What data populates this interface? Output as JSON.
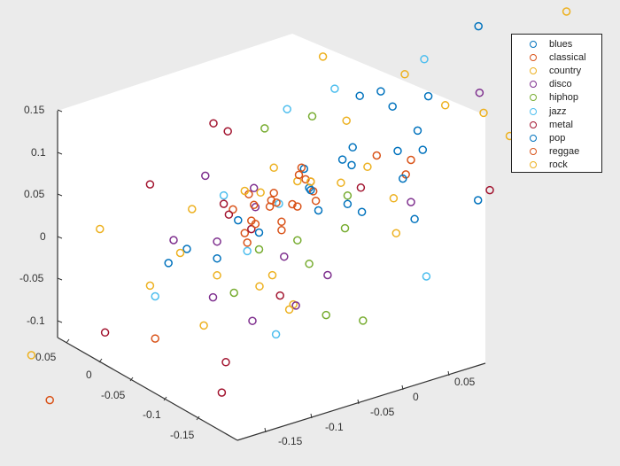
{
  "chart_data": {
    "type": "scatter3d",
    "title": "",
    "xlabel": "",
    "ylabel": "",
    "zlabel": "",
    "legend_position": "top-right outside",
    "grid": false,
    "x_ticks": [
      "-0.15",
      "-0.1",
      "-0.05",
      "0",
      "0.05"
    ],
    "y_ticks": [
      "0.05",
      "0",
      "-0.05",
      "-0.1",
      "-0.15"
    ],
    "z_ticks": [
      "0.15",
      "0.1",
      "0.05",
      "0",
      "-0.05",
      "-0.1"
    ],
    "series": [
      {
        "name": "blues",
        "color": "#0072BD",
        "points": [
          [
            0.02,
            0.01,
            0.05
          ],
          [
            0.05,
            -0.02,
            0.03
          ],
          [
            -0.03,
            0.04,
            0.02
          ],
          [
            0.08,
            0.02,
            0.06
          ],
          [
            0.1,
            -0.05,
            0.04
          ],
          [
            -0.06,
            0.03,
            -0.02
          ],
          [
            0.03,
            -0.06,
            0.1
          ],
          [
            0.12,
            -0.03,
            0.02
          ],
          [
            0.0,
            0.05,
            0.0
          ],
          [
            0.06,
            0.0,
            -0.01
          ],
          [
            -0.1,
            0.02,
            0.0
          ],
          [
            0.09,
            -0.08,
            0.07
          ],
          [
            0.14,
            0.01,
            -0.05
          ],
          [
            0.04,
            0.03,
            0.03
          ]
        ]
      },
      {
        "name": "classical",
        "color": "#D95319",
        "points": [
          [
            -0.02,
            0.0,
            0.03
          ],
          [
            -0.01,
            0.02,
            0.02
          ],
          [
            0.0,
            0.0,
            0.01
          ],
          [
            -0.04,
            0.01,
            0.04
          ],
          [
            0.01,
            0.03,
            0.0
          ],
          [
            -0.03,
            -0.01,
            0.02
          ],
          [
            0.02,
            0.02,
            0.01
          ],
          [
            -0.05,
            0.02,
            0.03
          ],
          [
            0.0,
            -0.02,
            0.03
          ],
          [
            -0.02,
            0.04,
            -0.01
          ],
          [
            0.01,
            0.0,
            0.05
          ],
          [
            -0.03,
            0.03,
            0.0
          ],
          [
            0.03,
            0.01,
            0.02
          ],
          [
            -0.12,
            0.04,
            -0.09
          ],
          [
            0.08,
            -0.06,
            -0.01
          ]
        ]
      },
      {
        "name": "country",
        "color": "#EDB120",
        "points": [
          [
            -0.08,
            0.04,
            0.05
          ],
          [
            0.05,
            -0.1,
            0.1
          ],
          [
            0.13,
            -0.05,
            0.06
          ],
          [
            -0.14,
            0.02,
            -0.03
          ],
          [
            0.02,
            0.02,
            0.04
          ],
          [
            0.0,
            0.03,
            -0.06
          ],
          [
            -0.05,
            -0.02,
            -0.08
          ],
          [
            0.11,
            0.0,
            -0.02
          ],
          [
            -0.1,
            0.03,
            0.0
          ],
          [
            0.06,
            -0.03,
            0.02
          ],
          [
            -0.02,
            0.0,
            0.06
          ],
          [
            0.15,
            -0.08,
            0.03
          ],
          [
            -0.06,
            0.05,
            -0.09
          ],
          [
            0.03,
            0.04,
            -0.1
          ]
        ]
      },
      {
        "name": "disco",
        "color": "#7E2F8E",
        "points": [
          [
            -0.08,
            0.02,
            0.08
          ],
          [
            -0.06,
            0.03,
            0.0
          ],
          [
            0.0,
            0.06,
            -0.1
          ],
          [
            -0.04,
            0.0,
            0.02
          ],
          [
            0.06,
            0.03,
            -0.08
          ],
          [
            0.1,
            -0.04,
            -0.04
          ],
          [
            -0.1,
            0.04,
            0.02
          ],
          [
            0.02,
            0.04,
            -0.04
          ],
          [
            -0.05,
            0.05,
            -0.06
          ],
          [
            0.16,
            -0.06,
            0.06
          ],
          [
            0.04,
            0.05,
            -0.1
          ],
          [
            -0.02,
            0.03,
            0.05
          ]
        ]
      },
      {
        "name": "hiphop",
        "color": "#77AC30",
        "points": [
          [
            0.0,
            -0.03,
            0.1
          ],
          [
            -0.03,
            0.0,
            0.11
          ],
          [
            0.02,
            0.02,
            -0.03
          ],
          [
            0.08,
            0.06,
            -0.12
          ],
          [
            0.12,
            0.06,
            -0.14
          ],
          [
            0.04,
            0.03,
            -0.06
          ],
          [
            -0.02,
            0.06,
            -0.06
          ],
          [
            0.06,
            0.0,
            0.0
          ],
          [
            0.0,
            0.05,
            -0.02
          ],
          [
            0.05,
            -0.01,
            -0.04
          ]
        ]
      },
      {
        "name": "jazz",
        "color": "#4DBEEE",
        "points": [
          [
            -0.02,
            -0.02,
            0.12
          ],
          [
            0.01,
            -0.05,
            0.12
          ],
          [
            -0.06,
            0.02,
            0.05
          ],
          [
            -0.12,
            0.04,
            -0.04
          ],
          [
            0.0,
            0.02,
            0.02
          ],
          [
            0.04,
            0.08,
            -0.12
          ],
          [
            0.16,
            0.02,
            -0.12
          ],
          [
            0.1,
            -0.06,
            0.12
          ],
          [
            -0.02,
            0.04,
            -0.02
          ]
        ]
      },
      {
        "name": "metal",
        "color": "#A2142F",
        "points": [
          [
            -0.1,
            -0.02,
            0.13
          ],
          [
            -0.14,
            0.02,
            0.09
          ],
          [
            -0.07,
            0.0,
            0.12
          ],
          [
            -0.06,
            0.02,
            0.04
          ],
          [
            -0.16,
            0.06,
            -0.06
          ],
          [
            0.01,
            0.12,
            -0.16
          ],
          [
            -0.04,
            0.04,
            0.03
          ],
          [
            0.2,
            -0.02,
            -0.05
          ],
          [
            0.03,
            0.06,
            -0.08
          ],
          [
            0.0,
            0.1,
            -0.13
          ],
          [
            -0.03,
            0.02,
            0.0
          ],
          [
            0.06,
            -0.02,
            0.0
          ]
        ]
      },
      {
        "name": "pop",
        "color": "#0072BD",
        "points": [
          [
            0.06,
            -0.05,
            0.1
          ],
          [
            0.08,
            -0.04,
            0.08
          ],
          [
            0.04,
            -0.02,
            0.04
          ],
          [
            0.1,
            -0.02,
            0.03
          ],
          [
            0.12,
            0.0,
            0.0
          ],
          [
            -0.12,
            0.02,
            -0.01
          ],
          [
            0.02,
            0.0,
            0.02
          ],
          [
            0.13,
            -0.1,
            0.13
          ],
          [
            0.09,
            0.02,
            -0.02
          ],
          [
            0.05,
            0.03,
            0.0
          ],
          [
            0.18,
            -0.03,
            -0.06
          ]
        ]
      },
      {
        "name": "reggae",
        "color": "#D95319",
        "points": [
          [
            -0.01,
            0.01,
            0.02
          ],
          [
            0.02,
            0.0,
            0.03
          ],
          [
            -0.03,
            0.02,
            0.01
          ],
          [
            0.0,
            -0.01,
            0.04
          ],
          [
            -0.02,
            0.03,
            0.03
          ],
          [
            0.04,
            0.02,
            0.01
          ],
          [
            0.07,
            -0.03,
            0.03
          ],
          [
            -0.04,
            0.0,
            0.0
          ],
          [
            0.01,
            0.03,
            -0.01
          ],
          [
            0.1,
            -0.04,
            0.01
          ],
          [
            -0.22,
            0.06,
            -0.12
          ]
        ]
      },
      {
        "name": "rock",
        "color": "#EDB120",
        "points": [
          [
            -0.01,
            -0.06,
            0.16
          ],
          [
            0.03,
            -0.04,
            0.08
          ],
          [
            -0.18,
            0.04,
            0.06
          ],
          [
            0.24,
            -0.08,
            0.12
          ],
          [
            0.02,
            0.0,
            0.03
          ],
          [
            -0.02,
            0.02,
            0.04
          ],
          [
            -0.24,
            0.06,
            -0.06
          ],
          [
            0.06,
            0.01,
            0.02
          ],
          [
            -0.06,
            0.03,
            -0.04
          ],
          [
            0.12,
            0.01,
            -0.06
          ],
          [
            -0.03,
            0.03,
            0.05
          ],
          [
            0.2,
            -0.05,
            0.0
          ],
          [
            0.04,
            0.06,
            -0.1
          ]
        ]
      }
    ]
  }
}
